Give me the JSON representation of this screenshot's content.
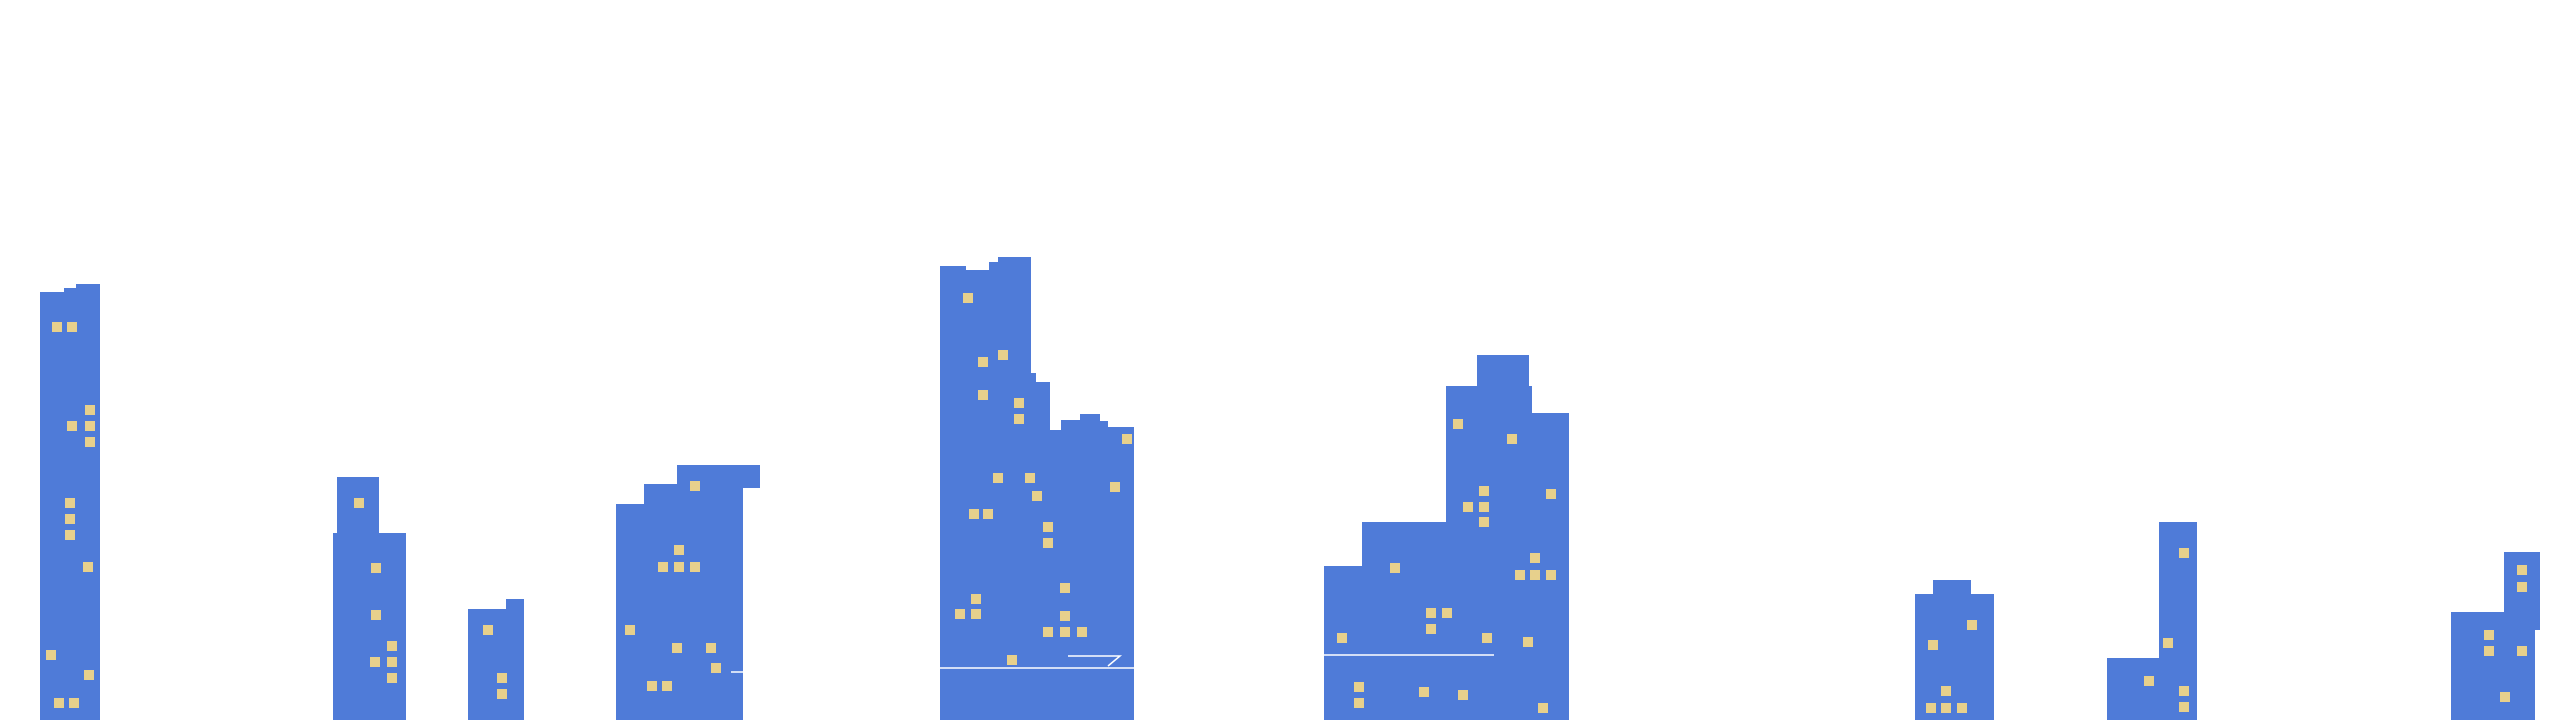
{
  "scene": {
    "type": "city-skyline",
    "background_color": "#ffffff",
    "building_color": "#4f7bd8",
    "window_color": "#e7d08c",
    "line_color": "#ffffff",
    "building_count": 11
  }
}
